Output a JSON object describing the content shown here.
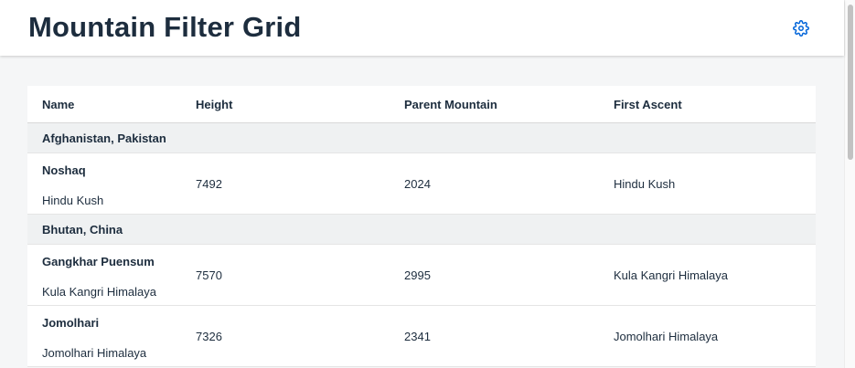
{
  "header": {
    "title": "Mountain Filter Grid",
    "settings_icon": "gear-icon",
    "accent_color": "#0064d9"
  },
  "table": {
    "columns": [
      "Name",
      "Height",
      "Parent Mountain",
      "First Ascent"
    ],
    "groups": [
      {
        "label": "Afghanistan, Pakistan",
        "rows": [
          {
            "name": "Noshaq",
            "range": "Hindu Kush",
            "height": "7492",
            "parent_mountain": "2024",
            "first_ascent": "Hindu Kush"
          }
        ]
      },
      {
        "label": "Bhutan, China",
        "rows": [
          {
            "name": "Gangkhar Puensum",
            "range": "Kula Kangri Himalaya",
            "height": "7570",
            "parent_mountain": "2995",
            "first_ascent": "Kula Kangri Himalaya"
          },
          {
            "name": "Jomolhari",
            "range": "Jomolhari Himalaya",
            "height": "7326",
            "parent_mountain": "2341",
            "first_ascent": "Jomolhari Himalaya"
          }
        ]
      }
    ]
  }
}
